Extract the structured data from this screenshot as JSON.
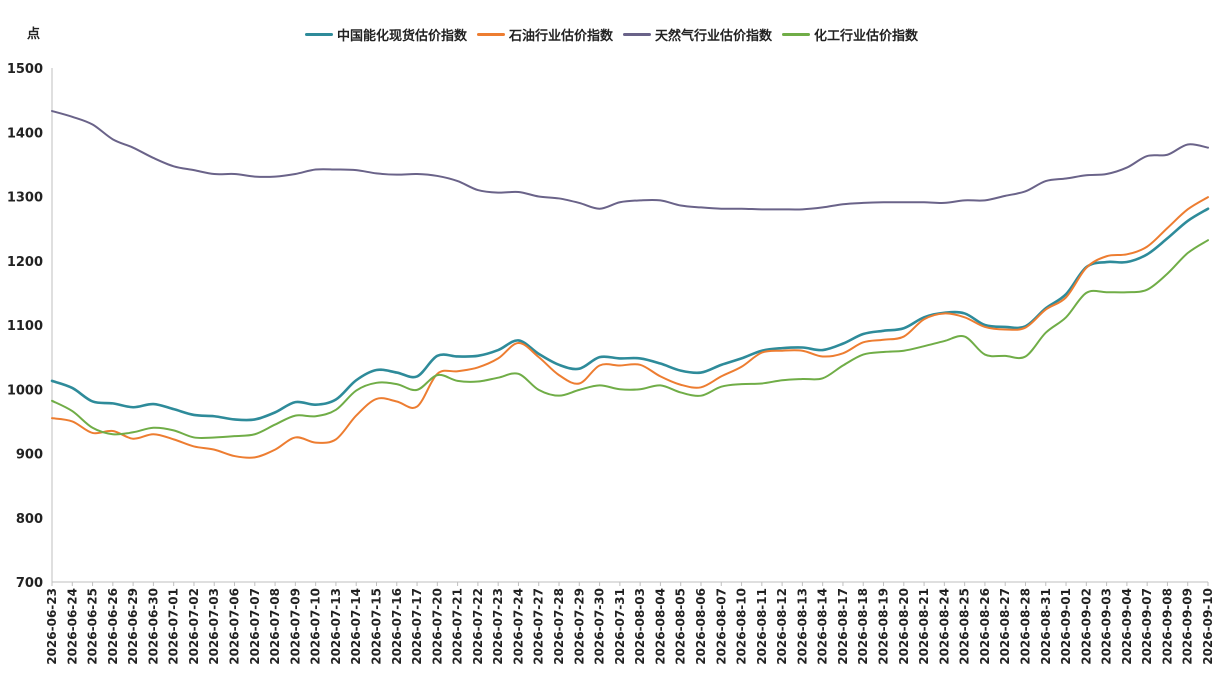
{
  "chart_data": {
    "type": "line",
    "ylabel": "点",
    "ylim": [
      700,
      1500
    ],
    "yticks": [
      "700",
      "800",
      "900",
      "1000",
      "1100",
      "1200",
      "1300",
      "1400",
      "1500"
    ],
    "grid": false,
    "legend_position": "top-center",
    "categories": [
      "2026-06-23",
      "2026-06-24",
      "2026-06-25",
      "2026-06-26",
      "2026-06-29",
      "2026-06-30",
      "2026-07-01",
      "2026-07-02",
      "2026-07-03",
      "2026-07-06",
      "2026-07-07",
      "2026-07-08",
      "2026-07-09",
      "2026-07-10",
      "2026-07-13",
      "2026-07-14",
      "2026-07-15",
      "2026-07-16",
      "2026-07-17",
      "2026-07-20",
      "2026-07-21",
      "2026-07-22",
      "2026-07-23",
      "2026-07-24",
      "2026-07-27",
      "2026-07-28",
      "2026-07-29",
      "2026-07-30",
      "2026-07-31",
      "2026-08-03",
      "2026-08-04",
      "2026-08-05",
      "2026-08-06",
      "2026-08-07",
      "2026-08-10",
      "2026-08-11",
      "2026-08-12",
      "2026-08-13",
      "2026-08-14",
      "2026-08-17",
      "2026-08-18",
      "2026-08-19",
      "2026-08-20",
      "2026-08-21",
      "2026-08-24",
      "2026-08-25",
      "2026-08-26",
      "2026-08-27",
      "2026-08-28",
      "2026-08-31",
      "2026-09-01",
      "2026-09-02",
      "2026-09-03",
      "2026-09-04",
      "2026-09-07",
      "2026-09-08",
      "2026-09-09",
      "2026-09-10"
    ],
    "series": [
      {
        "name": "中国能化现货估价指数",
        "color": "#2e8b9a",
        "values": [
          1013,
          1002,
          981,
          978,
          972,
          977,
          969,
          960,
          958,
          953,
          953,
          964,
          980,
          976,
          984,
          1014,
          1030,
          1026,
          1020,
          1052,
          1051,
          1052,
          1061,
          1076,
          1055,
          1038,
          1032,
          1050,
          1048,
          1048,
          1040,
          1029,
          1026,
          1038,
          1048,
          1060,
          1064,
          1065,
          1061,
          1071,
          1086,
          1091,
          1095,
          1112,
          1119,
          1118,
          1100,
          1097,
          1098,
          1126,
          1148,
          1190,
          1198,
          1198,
          1210,
          1235,
          1262,
          1281
        ]
      },
      {
        "name": "石油行业估价指数",
        "color": "#ed7d31",
        "values": [
          955,
          950,
          932,
          935,
          923,
          930,
          922,
          911,
          906,
          896,
          894,
          906,
          925,
          917,
          922,
          959,
          985,
          981,
          973,
          1024,
          1028,
          1034,
          1048,
          1072,
          1050,
          1022,
          1009,
          1037,
          1037,
          1038,
          1020,
          1007,
          1003,
          1020,
          1035,
          1057,
          1060,
          1060,
          1051,
          1056,
          1073,
          1077,
          1082,
          1109,
          1118,
          1112,
          1097,
          1093,
          1096,
          1124,
          1143,
          1189,
          1207,
          1210,
          1222,
          1251,
          1280,
          1299
        ]
      },
      {
        "name": "天然气行业估价指数",
        "color": "#6a6389",
        "values": [
          1433,
          1424,
          1412,
          1389,
          1376,
          1360,
          1347,
          1341,
          1335,
          1335,
          1331,
          1331,
          1335,
          1342,
          1342,
          1341,
          1336,
          1334,
          1335,
          1332,
          1324,
          1310,
          1306,
          1307,
          1300,
          1297,
          1290,
          1281,
          1291,
          1294,
          1294,
          1286,
          1283,
          1281,
          1281,
          1280,
          1280,
          1280,
          1283,
          1288,
          1290,
          1291,
          1291,
          1291,
          1290,
          1294,
          1294,
          1301,
          1308,
          1324,
          1328,
          1333,
          1335,
          1345,
          1363,
          1365,
          1381,
          1376
        ]
      },
      {
        "name": "化工行业估价指数",
        "color": "#70ad47",
        "values": [
          982,
          966,
          940,
          930,
          933,
          940,
          936,
          925,
          925,
          927,
          930,
          945,
          959,
          958,
          968,
          998,
          1010,
          1008,
          999,
          1022,
          1013,
          1012,
          1018,
          1024,
          999,
          990,
          999,
          1006,
          1000,
          1000,
          1006,
          995,
          990,
          1004,
          1008,
          1009,
          1014,
          1016,
          1017,
          1037,
          1054,
          1058,
          1060,
          1067,
          1075,
          1082,
          1054,
          1052,
          1051,
          1088,
          1112,
          1150,
          1151,
          1151,
          1155,
          1180,
          1212,
          1232
        ]
      }
    ]
  }
}
